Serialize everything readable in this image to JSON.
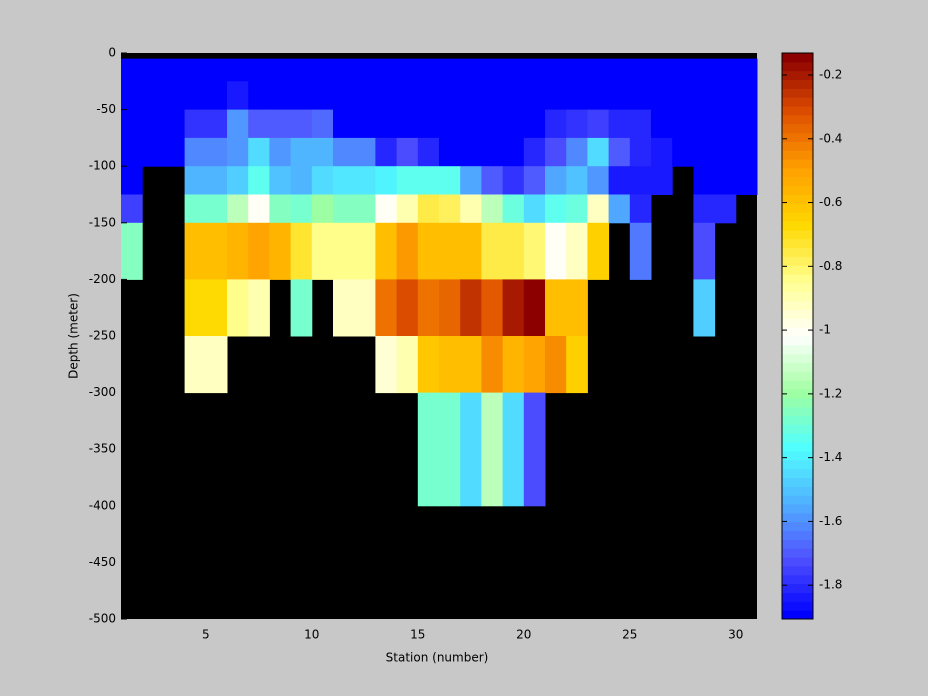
{
  "chart_data": {
    "type": "heatmap",
    "xlabel": "Station (number)",
    "ylabel": "Depth (meter)",
    "x_edges": [
      1,
      2,
      3,
      4,
      5,
      6,
      7,
      8,
      9,
      10,
      11,
      12,
      13,
      14,
      15,
      16,
      17,
      18,
      19,
      20,
      21,
      22,
      23,
      24,
      25,
      26,
      27,
      28,
      29,
      30,
      31
    ],
    "y_edges": [
      0,
      -5,
      -25,
      -50,
      -75,
      -100,
      -125,
      -150,
      -200,
      -250,
      -300,
      -400,
      -500
    ],
    "values": [
      [
        null,
        null,
        null,
        null,
        null,
        null,
        null,
        null,
        null,
        null,
        null,
        null,
        null,
        null,
        null,
        null,
        null,
        null,
        null,
        null,
        null,
        null,
        null,
        null,
        null,
        null,
        null,
        null,
        null,
        null
      ],
      [
        -1.88,
        -1.88,
        -1.88,
        -1.88,
        -1.88,
        -1.88,
        -1.88,
        -1.88,
        -1.88,
        -1.88,
        -1.88,
        -1.88,
        -1.88,
        -1.88,
        -1.88,
        -1.88,
        -1.88,
        -1.88,
        -1.88,
        -1.88,
        -1.88,
        -1.88,
        -1.88,
        -1.88,
        -1.88,
        -1.88,
        -1.88,
        -1.88,
        -1.88,
        -1.88
      ],
      [
        -1.88,
        -1.88,
        -1.88,
        -1.88,
        -1.88,
        -1.83,
        -1.88,
        -1.88,
        -1.88,
        -1.88,
        -1.88,
        -1.88,
        -1.88,
        -1.88,
        -1.88,
        -1.88,
        -1.88,
        -1.88,
        -1.88,
        -1.88,
        -1.88,
        -1.88,
        -1.88,
        -1.88,
        -1.88,
        -1.88,
        -1.88,
        -1.88,
        -1.88,
        -1.88
      ],
      [
        -1.88,
        -1.88,
        -1.88,
        -1.78,
        -1.78,
        -1.6,
        -1.7,
        -1.7,
        -1.7,
        -1.68,
        -1.88,
        -1.88,
        -1.88,
        -1.88,
        -1.88,
        -1.88,
        -1.88,
        -1.88,
        -1.88,
        -1.88,
        -1.8,
        -1.78,
        -1.75,
        -1.8,
        -1.82,
        -1.88,
        -1.88,
        -1.88,
        -1.88,
        -1.88
      ],
      [
        -1.88,
        -1.88,
        -1.88,
        -1.62,
        -1.62,
        -1.6,
        -1.45,
        -1.58,
        -1.52,
        -1.52,
        -1.62,
        -1.62,
        -1.8,
        -1.72,
        -1.82,
        -1.88,
        -1.88,
        -1.88,
        -1.88,
        -1.8,
        -1.72,
        -1.62,
        -1.45,
        -1.7,
        -1.8,
        -1.85,
        -1.88,
        -1.88,
        -1.88,
        -1.88
      ],
      [
        -1.88,
        null,
        null,
        -1.52,
        -1.52,
        -1.48,
        -1.35,
        -1.5,
        -1.52,
        -1.45,
        -1.42,
        -1.42,
        -1.38,
        -1.35,
        -1.35,
        -1.35,
        -1.55,
        -1.7,
        -1.78,
        -1.7,
        -1.55,
        -1.5,
        -1.58,
        -1.85,
        -1.85,
        -1.85,
        null,
        -1.88,
        -1.88,
        -1.88
      ],
      [
        -1.75,
        null,
        null,
        -1.28,
        -1.28,
        -1.15,
        -1.0,
        -1.25,
        -1.28,
        -1.2,
        -1.25,
        -1.25,
        -1.0,
        -0.88,
        -0.75,
        -0.78,
        -0.88,
        -1.15,
        -1.3,
        -1.45,
        -1.35,
        -1.3,
        -0.92,
        -1.55,
        -1.8,
        null,
        null,
        -1.8,
        -1.8,
        null
      ],
      [
        -1.25,
        null,
        null,
        -0.6,
        -0.6,
        -0.55,
        -0.5,
        -0.55,
        -0.72,
        -0.85,
        -0.85,
        -0.85,
        -0.6,
        -0.48,
        -0.6,
        -0.6,
        -0.6,
        -0.75,
        -0.75,
        -0.82,
        -1.0,
        -0.92,
        -0.65,
        null,
        -1.65,
        null,
        null,
        -1.72,
        null,
        null
      ],
      [
        null,
        null,
        null,
        -0.68,
        -0.68,
        -0.85,
        -0.9,
        null,
        -1.28,
        null,
        -0.92,
        -0.92,
        -0.4,
        -0.3,
        -0.4,
        -0.38,
        -0.25,
        -0.35,
        -0.2,
        -0.13,
        -0.6,
        -0.6,
        null,
        null,
        null,
        null,
        null,
        -1.48,
        null,
        null
      ],
      [
        null,
        null,
        null,
        -0.92,
        -0.92,
        null,
        null,
        null,
        null,
        null,
        null,
        null,
        -0.95,
        -0.88,
        -0.62,
        -0.6,
        -0.6,
        -0.45,
        -0.55,
        -0.5,
        -0.45,
        -0.65,
        null,
        null,
        null,
        null,
        null,
        null,
        null,
        null
      ],
      [
        null,
        null,
        null,
        null,
        null,
        null,
        null,
        null,
        null,
        null,
        null,
        null,
        null,
        null,
        -1.28,
        -1.28,
        -1.45,
        -1.15,
        -1.45,
        -1.72,
        null,
        null,
        null,
        null,
        null,
        null,
        null,
        null,
        null,
        null
      ],
      [
        null,
        null,
        null,
        null,
        null,
        null,
        null,
        null,
        null,
        null,
        null,
        null,
        null,
        null,
        null,
        null,
        null,
        null,
        null,
        null,
        null,
        null,
        null,
        null,
        null,
        null,
        null,
        null,
        null,
        null
      ]
    ],
    "xlim": [
      1,
      31
    ],
    "ylim": [
      -500,
      0
    ],
    "xticks": [
      5,
      10,
      15,
      20,
      25,
      30
    ],
    "yticks": [
      0,
      -50,
      -100,
      -150,
      -200,
      -250,
      -300,
      -350,
      -400,
      -450,
      -500
    ],
    "clim": [
      -1.906,
      -0.131
    ],
    "cticks": [
      -1.8,
      -1.6,
      -1.4,
      -1.2,
      -1,
      -0.8,
      -0.6,
      -0.4,
      -0.2
    ],
    "colormap": [
      "#0000ff",
      "#5050ff",
      "#50b0ff",
      "#50ffff",
      "#a0ffa0",
      "#ffffff",
      "#ffff90",
      "#ffd800",
      "#ffa000",
      "#e05000",
      "#8c0000"
    ],
    "missing_color": "#000000"
  }
}
